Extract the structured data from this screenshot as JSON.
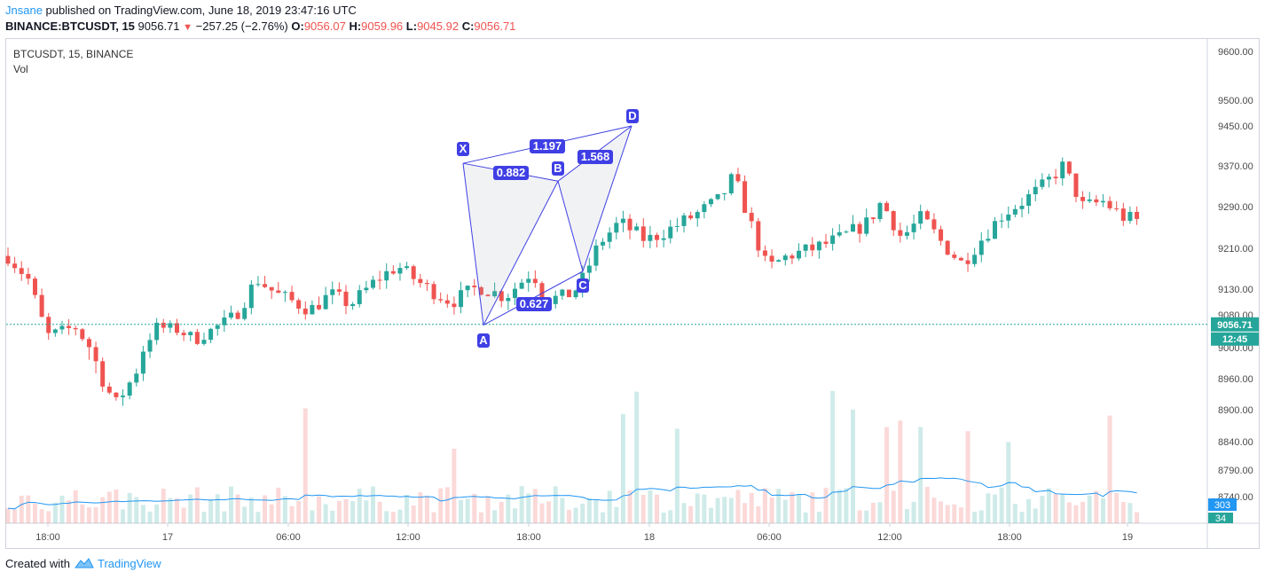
{
  "header": {
    "author": "Jnsane",
    "published": "published on TradingView.com, June 18, 2019 23:47:16 UTC"
  },
  "ohlc": {
    "symbol": "BINANCE:BTCUSDT, 15",
    "last": "9056.71",
    "change": "−257.25 (−2.76%)",
    "o_label": "O:",
    "o": "9056.07",
    "h_label": "H:",
    "h": "9059.96",
    "l_label": "L:",
    "l": "9045.92",
    "c_label": "C:",
    "c": "9056.71"
  },
  "legend": {
    "symbol": "BTCUSDT, 15, BINANCE",
    "volume": "Vol"
  },
  "footer": {
    "created_with": "Created with",
    "brand": "TradingView"
  },
  "colors": {
    "up": "#26a69a",
    "down": "#ef5350",
    "pattern": "#3f3fe5",
    "volume_ma": "#2196f3",
    "price_line": "#26a69a"
  },
  "chart_data": {
    "type": "candlestick",
    "y_ticks": [
      "9600.00",
      "9500.00",
      "9450.00",
      "9370.00",
      "9290.00",
      "9210.00",
      "9130.00",
      "9080.00",
      "9000.00",
      "8960.00",
      "8900.00",
      "8840.00",
      "8790.00",
      "8740.00"
    ],
    "ylim": [
      8690,
      9630
    ],
    "x_ticks": [
      "18:00",
      "17",
      "06:00",
      "12:00",
      "18:00",
      "18",
      "06:00",
      "12:00",
      "18:00",
      "19"
    ],
    "current_price": "9056.71",
    "countdown": "12:45",
    "volume_ma_label": "303",
    "volume_label": "34",
    "candle_count": 168,
    "anchors": [
      [
        0,
        9195
      ],
      [
        3,
        9150
      ],
      [
        6,
        9030
      ],
      [
        10,
        9050
      ],
      [
        14,
        8960
      ],
      [
        16,
        8910
      ],
      [
        19,
        8970
      ],
      [
        22,
        9050
      ],
      [
        25,
        9045
      ],
      [
        28,
        9020
      ],
      [
        31,
        9050
      ],
      [
        34,
        9080
      ],
      [
        37,
        9150
      ],
      [
        40,
        9120
      ],
      [
        45,
        9090
      ],
      [
        48,
        9120
      ],
      [
        51,
        9100
      ],
      [
        55,
        9150
      ],
      [
        58,
        9175
      ],
      [
        62,
        9135
      ],
      [
        66,
        9105
      ],
      [
        70,
        9135
      ],
      [
        74,
        9115
      ],
      [
        78,
        9165
      ],
      [
        80,
        9110
      ],
      [
        83,
        9115
      ],
      [
        85,
        9135
      ],
      [
        88,
        9220
      ],
      [
        91,
        9260
      ],
      [
        95,
        9225
      ],
      [
        99,
        9250
      ],
      [
        103,
        9280
      ],
      [
        106,
        9305
      ],
      [
        108,
        9350
      ],
      [
        111,
        9240
      ],
      [
        113,
        9170
      ],
      [
        116,
        9195
      ],
      [
        120,
        9210
      ],
      [
        124,
        9230
      ],
      [
        128,
        9260
      ],
      [
        130,
        9300
      ],
      [
        133,
        9230
      ],
      [
        136,
        9270
      ],
      [
        139,
        9220
      ],
      [
        142,
        9180
      ],
      [
        145,
        9230
      ],
      [
        148,
        9275
      ],
      [
        151,
        9300
      ],
      [
        154,
        9330
      ],
      [
        157,
        9370
      ],
      [
        160,
        9290
      ],
      [
        163,
        9300
      ],
      [
        166,
        9270
      ],
      [
        169,
        9260
      ]
    ],
    "harmonic_pattern": {
      "points": [
        {
          "label": "X",
          "price": 9375
        },
        {
          "label": "A",
          "price": 9055
        },
        {
          "label": "B",
          "price": 9340
        },
        {
          "label": "C",
          "price": 9165
        },
        {
          "label": "D",
          "price": 9450
        }
      ],
      "ratios": [
        "0.882",
        "0.627",
        "1.568",
        "1.197"
      ]
    }
  }
}
